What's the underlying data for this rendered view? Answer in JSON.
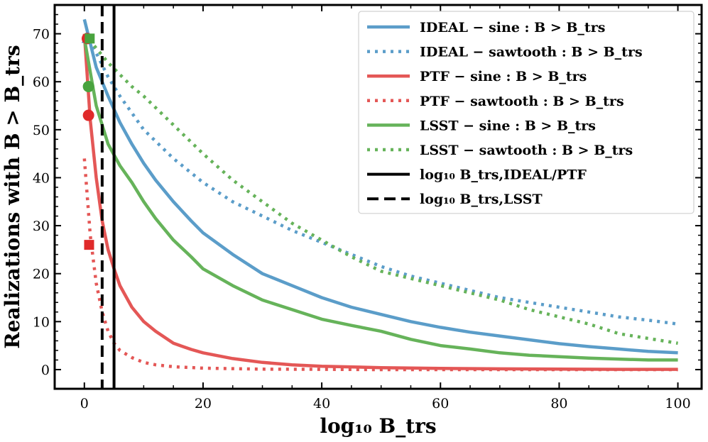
{
  "chart_data": {
    "type": "line",
    "xlabel": "log₁₀ B_trs",
    "ylabel": "Realizations with B > B_trs",
    "xlim": [
      -5,
      104
    ],
    "ylim": [
      -4,
      76
    ],
    "xticks": [
      0,
      20,
      40,
      60,
      80,
      100
    ],
    "yticks": [
      0,
      10,
      20,
      30,
      40,
      50,
      60,
      70
    ],
    "legend_position": "top-right",
    "series": [
      {
        "name": "IDEAL − sine : B > B_trs",
        "color": "#5b9dc9",
        "style": "solid",
        "x": [
          0,
          2,
          4,
          6,
          8,
          10,
          12,
          15,
          18,
          20,
          25,
          30,
          35,
          40,
          45,
          50,
          55,
          60,
          65,
          70,
          75,
          80,
          85,
          90,
          95,
          100
        ],
        "y": [
          73,
          63,
          57,
          51.5,
          47,
          43,
          39.5,
          35,
          31,
          28.5,
          24,
          20,
          17.5,
          15,
          13,
          11.5,
          10,
          8.8,
          7.8,
          7,
          6.2,
          5.4,
          4.8,
          4.3,
          3.8,
          3.5
        ]
      },
      {
        "name": "IDEAL − sawtooth : B > B_trs",
        "color": "#5b9dc9",
        "style": "dotted",
        "x": [
          0,
          2,
          4,
          6,
          8,
          10,
          15,
          20,
          25,
          30,
          35,
          40,
          45,
          50,
          55,
          60,
          65,
          70,
          75,
          80,
          85,
          90,
          95,
          100
        ],
        "y": [
          70,
          66,
          61,
          57,
          53.5,
          50,
          44,
          39,
          35,
          32,
          29,
          26.5,
          24,
          21.5,
          19.5,
          18,
          16.5,
          15,
          14,
          13,
          12,
          11,
          10.3,
          9.5
        ]
      },
      {
        "name": "PTF − sine : B > B_trs",
        "color": "#e45756",
        "style": "solid",
        "x": [
          0,
          1,
          2,
          3,
          4,
          5,
          6,
          8,
          10,
          12,
          15,
          18,
          20,
          25,
          30,
          35,
          40,
          50,
          60,
          70,
          80,
          90,
          100
        ],
        "y": [
          70,
          52,
          40,
          31,
          25,
          21,
          17.5,
          13,
          10,
          8,
          5.5,
          4.2,
          3.5,
          2.3,
          1.5,
          1.0,
          0.7,
          0.4,
          0.25,
          0.15,
          0.1,
          0.05,
          0.05
        ]
      },
      {
        "name": "PTF − sawtooth : B > B_trs",
        "color": "#e45756",
        "style": "dotted",
        "x": [
          0,
          1,
          2,
          3,
          4,
          5,
          6,
          8,
          10,
          12,
          15,
          20,
          25,
          30,
          40,
          50,
          60,
          80,
          100
        ],
        "y": [
          44,
          28,
          18,
          12,
          8,
          5.5,
          4,
          2.5,
          1.5,
          1.0,
          0.6,
          0.3,
          0.2,
          0.1,
          0.05,
          0,
          0,
          0,
          0
        ]
      },
      {
        "name": "LSST − sine : B > B_trs",
        "color": "#66b35a",
        "style": "solid",
        "x": [
          0,
          2,
          4,
          6,
          8,
          10,
          12,
          15,
          18,
          20,
          25,
          30,
          35,
          40,
          45,
          50,
          55,
          60,
          65,
          70,
          75,
          80,
          85,
          90,
          95,
          100
        ],
        "y": [
          69,
          55,
          47,
          42.5,
          39,
          35,
          31.5,
          27,
          23.5,
          21,
          17.5,
          14.5,
          12.5,
          10.5,
          9.2,
          8,
          6.3,
          5,
          4.3,
          3.5,
          3,
          2.7,
          2.4,
          2.2,
          2.0,
          2.0
        ]
      },
      {
        "name": "LSST − sawtooth : B > B_trs",
        "color": "#66b35a",
        "style": "dotted",
        "x": [
          0,
          2,
          4,
          6,
          8,
          10,
          15,
          20,
          25,
          30,
          35,
          40,
          45,
          50,
          55,
          60,
          65,
          70,
          75,
          80,
          85,
          90,
          95,
          100
        ],
        "y": [
          70,
          67,
          64,
          61.5,
          59,
          57,
          51,
          45,
          39.5,
          35,
          30.5,
          27,
          23.5,
          20.5,
          19,
          17.5,
          16,
          14.5,
          12.5,
          11,
          9.5,
          7.5,
          6.5,
          5.5
        ]
      }
    ],
    "markers": [
      {
        "shape": "triangle",
        "x": 0.5,
        "y": 69,
        "color": "#3b6fb5"
      },
      {
        "shape": "circle",
        "x": 0.5,
        "y": 69,
        "color": "#e02a2a"
      },
      {
        "shape": "circle",
        "x": 0.7,
        "y": 59,
        "color": "#49a33e"
      },
      {
        "shape": "square",
        "x": 0.9,
        "y": 69,
        "color": "#49a33e"
      },
      {
        "shape": "circle",
        "x": 0.7,
        "y": 53,
        "color": "#e02a2a"
      },
      {
        "shape": "square",
        "x": 0.8,
        "y": 26,
        "color": "#e02a2a"
      }
    ],
    "vlines": [
      {
        "name": "log₁₀ B_trs,IDEAL/PTF",
        "x": 5,
        "style": "solid",
        "color": "#000000"
      },
      {
        "name": "log₁₀ B_trs,LSST",
        "x": 3,
        "style": "dashed",
        "color": "#000000"
      }
    ]
  }
}
